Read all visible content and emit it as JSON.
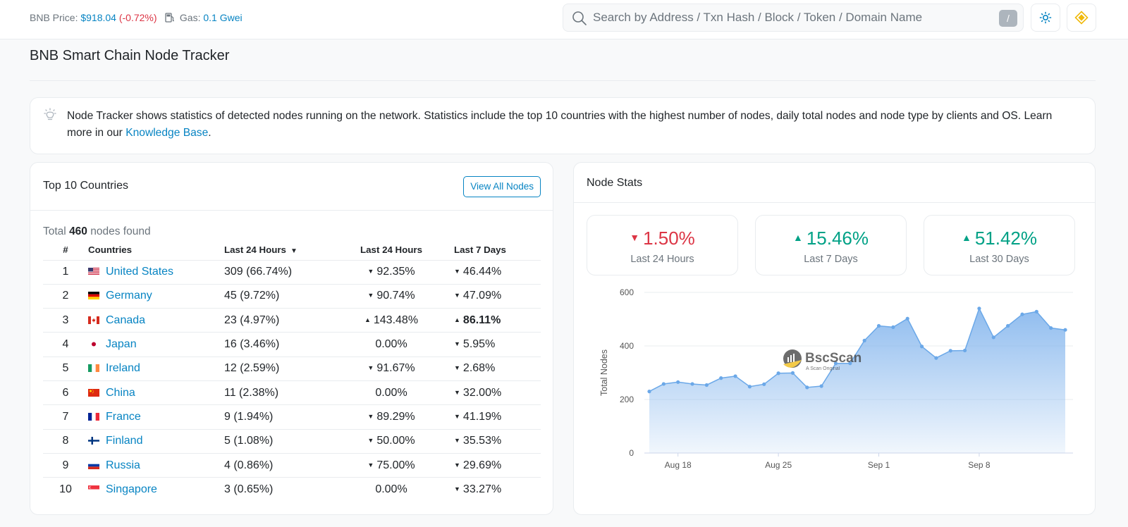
{
  "header": {
    "price_label": "BNB Price:",
    "price_value": "$918.04",
    "price_change": "(-0.72%)",
    "gas_label": "Gas:",
    "gas_value": "0.1 Gwei",
    "search_placeholder": "Search by Address / Txn Hash / Block / Token / Domain Name",
    "search_shortcut": "/"
  },
  "page": {
    "title": "BNB Smart Chain Node Tracker"
  },
  "info": {
    "text": "Node Tracker shows statistics of detected nodes running on the network. Statistics include the top 10 countries with the highest number of nodes, daily total nodes and node type by clients and OS. Learn more in our ",
    "link": "Knowledge Base",
    "end": "."
  },
  "countries": {
    "title": "Top 10 Countries",
    "view_all": "View All Nodes",
    "total_prefix": "Total",
    "total_count": "460",
    "total_suffix": "nodes found",
    "columns": [
      "#",
      "Countries",
      "Last 24 Hours",
      "Last 24 Hours",
      "Last 7 Days"
    ],
    "rows": [
      {
        "rank": "1",
        "country": "United States",
        "flag": "us",
        "count": "309 (66.74%)",
        "d24": "92.35%",
        "d24_dir": "down",
        "d7": "46.44%",
        "d7_dir": "down",
        "d7_bold": false
      },
      {
        "rank": "2",
        "country": "Germany",
        "flag": "de",
        "count": "45 (9.72%)",
        "d24": "90.74%",
        "d24_dir": "down",
        "d7": "47.09%",
        "d7_dir": "down",
        "d7_bold": false
      },
      {
        "rank": "3",
        "country": "Canada",
        "flag": "ca",
        "count": "23 (4.97%)",
        "d24": "143.48%",
        "d24_dir": "up",
        "d7": "86.11%",
        "d7_dir": "up",
        "d7_bold": true
      },
      {
        "rank": "4",
        "country": "Japan",
        "flag": "jp",
        "count": "16 (3.46%)",
        "d24": "0.00%",
        "d24_dir": "none",
        "d7": "5.95%",
        "d7_dir": "down",
        "d7_bold": false
      },
      {
        "rank": "5",
        "country": "Ireland",
        "flag": "ie",
        "count": "12 (2.59%)",
        "d24": "91.67%",
        "d24_dir": "down",
        "d7": "2.68%",
        "d7_dir": "down",
        "d7_bold": false
      },
      {
        "rank": "6",
        "country": "China",
        "flag": "cn",
        "count": "11 (2.38%)",
        "d24": "0.00%",
        "d24_dir": "none",
        "d7": "32.00%",
        "d7_dir": "down",
        "d7_bold": false
      },
      {
        "rank": "7",
        "country": "France",
        "flag": "fr",
        "count": "9 (1.94%)",
        "d24": "89.29%",
        "d24_dir": "down",
        "d7": "41.19%",
        "d7_dir": "down",
        "d7_bold": false
      },
      {
        "rank": "8",
        "country": "Finland",
        "flag": "fi",
        "count": "5 (1.08%)",
        "d24": "50.00%",
        "d24_dir": "down",
        "d7": "35.53%",
        "d7_dir": "down",
        "d7_bold": false
      },
      {
        "rank": "9",
        "country": "Russia",
        "flag": "ru",
        "count": "4 (0.86%)",
        "d24": "75.00%",
        "d24_dir": "down",
        "d7": "29.69%",
        "d7_dir": "down",
        "d7_bold": false
      },
      {
        "rank": "10",
        "country": "Singapore",
        "flag": "sg",
        "count": "3 (0.65%)",
        "d24": "0.00%",
        "d24_dir": "none",
        "d7": "33.27%",
        "d7_dir": "down",
        "d7_bold": false
      }
    ]
  },
  "node_stats": {
    "title": "Node Stats",
    "boxes": [
      {
        "value": "1.50%",
        "dir": "down",
        "label": "Last 24 Hours"
      },
      {
        "value": "15.46%",
        "dir": "up",
        "label": "Last 7 Days"
      },
      {
        "value": "51.42%",
        "dir": "up",
        "label": "Last 30 Days"
      }
    ]
  },
  "chart_data": {
    "type": "area",
    "title": "",
    "xlabel": "",
    "ylabel": "Total Nodes",
    "ylim": [
      0,
      600
    ],
    "yticks": [
      0,
      200,
      400,
      600
    ],
    "x_tick_labels": [
      "Aug 18",
      "Aug 25",
      "Sep 1",
      "Sep 8"
    ],
    "x_tick_index": [
      2,
      9,
      16,
      23
    ],
    "watermark": "BscScan",
    "watermark_sub": "A Scan Original",
    "series": [
      {
        "name": "Total Nodes",
        "values": [
          230,
          258,
          265,
          258,
          254,
          280,
          287,
          248,
          257,
          298,
          299,
          245,
          250,
          335,
          335,
          420,
          475,
          470,
          502,
          398,
          355,
          382,
          383,
          540,
          432,
          475,
          518,
          528,
          467,
          460
        ]
      }
    ],
    "colors": {
      "line": "#6ba8e8",
      "fill": "#8ab9ee"
    }
  },
  "colors": {
    "accent": "#0784c3",
    "negative": "#dc3545",
    "positive": "#00a186",
    "bnb": "#f0b90b"
  }
}
